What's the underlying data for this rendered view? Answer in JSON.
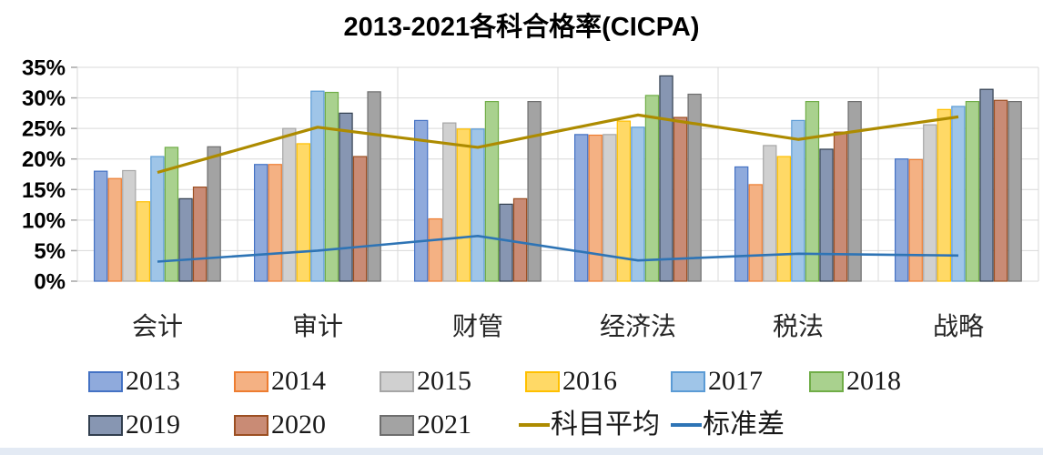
{
  "chart_data": {
    "type": "bar+line",
    "title": "2013-2021各科合格率(CICPA)",
    "categories": [
      "会计",
      "审计",
      "财管",
      "经济法",
      "税法",
      "战略"
    ],
    "y_axis": {
      "tick_values": [
        35,
        30,
        25,
        20,
        15,
        10,
        5,
        0
      ],
      "suffix": "%",
      "min": 0,
      "max": 35
    },
    "grid": "horizontal-and-category-boundaries",
    "legend_position": "bottom-two-rows",
    "bar_series": [
      {
        "name": "2013",
        "fill": "#8FAADC",
        "border": "#4472C4",
        "values": [
          18.0,
          19.1,
          26.3,
          24.0,
          18.7,
          20.0
        ]
      },
      {
        "name": "2014",
        "fill": "#F4B183",
        "border": "#ED7D31",
        "values": [
          16.8,
          19.1,
          10.2,
          23.9,
          15.8,
          19.9
        ]
      },
      {
        "name": "2015",
        "fill": "#D0D0D0",
        "border": "#A6A6A6",
        "values": [
          18.1,
          25.0,
          25.9,
          24.0,
          22.2,
          25.6
        ]
      },
      {
        "name": "2016",
        "fill": "#FFD966",
        "border": "#FFC000",
        "values": [
          13.0,
          22.5,
          24.9,
          26.2,
          20.4,
          28.1
        ]
      },
      {
        "name": "2017",
        "fill": "#9FC5E8",
        "border": "#5B9BD5",
        "values": [
          20.4,
          31.1,
          24.9,
          25.2,
          26.3,
          28.6
        ]
      },
      {
        "name": "2018",
        "fill": "#A9D18E",
        "border": "#70AD47",
        "values": [
          21.9,
          30.9,
          29.4,
          30.4,
          29.4,
          29.4
        ]
      },
      {
        "name": "2019",
        "fill": "#8796B2",
        "border": "#323F4F",
        "values": [
          13.5,
          27.5,
          12.6,
          33.6,
          21.6,
          31.4
        ]
      },
      {
        "name": "2020",
        "fill": "#C98B75",
        "border": "#9C4F22",
        "values": [
          15.4,
          20.4,
          13.5,
          26.8,
          24.4,
          29.6
        ]
      },
      {
        "name": "2021",
        "fill": "#A3A3A3",
        "border": "#6E6E6E",
        "values": [
          22.0,
          31.0,
          29.4,
          30.6,
          29.4,
          29.4
        ]
      }
    ],
    "line_series": [
      {
        "name": "科目平均",
        "color": "#AD8B00",
        "values": [
          17.8,
          25.2,
          21.9,
          27.2,
          23.2,
          26.9
        ]
      },
      {
        "name": "标准差",
        "color": "#2E74B5",
        "values": [
          3.2,
          5.0,
          7.4,
          3.4,
          4.5,
          4.2
        ]
      }
    ],
    "colors": {
      "gridline": "#D9D9D9",
      "tick": "#A6A6A6",
      "axis_text": "#000000",
      "category_text": "#262626",
      "average_line": "#AD8B00",
      "stddev_line": "#2E74B5",
      "bottom_strip": "#E3EAF4"
    }
  }
}
